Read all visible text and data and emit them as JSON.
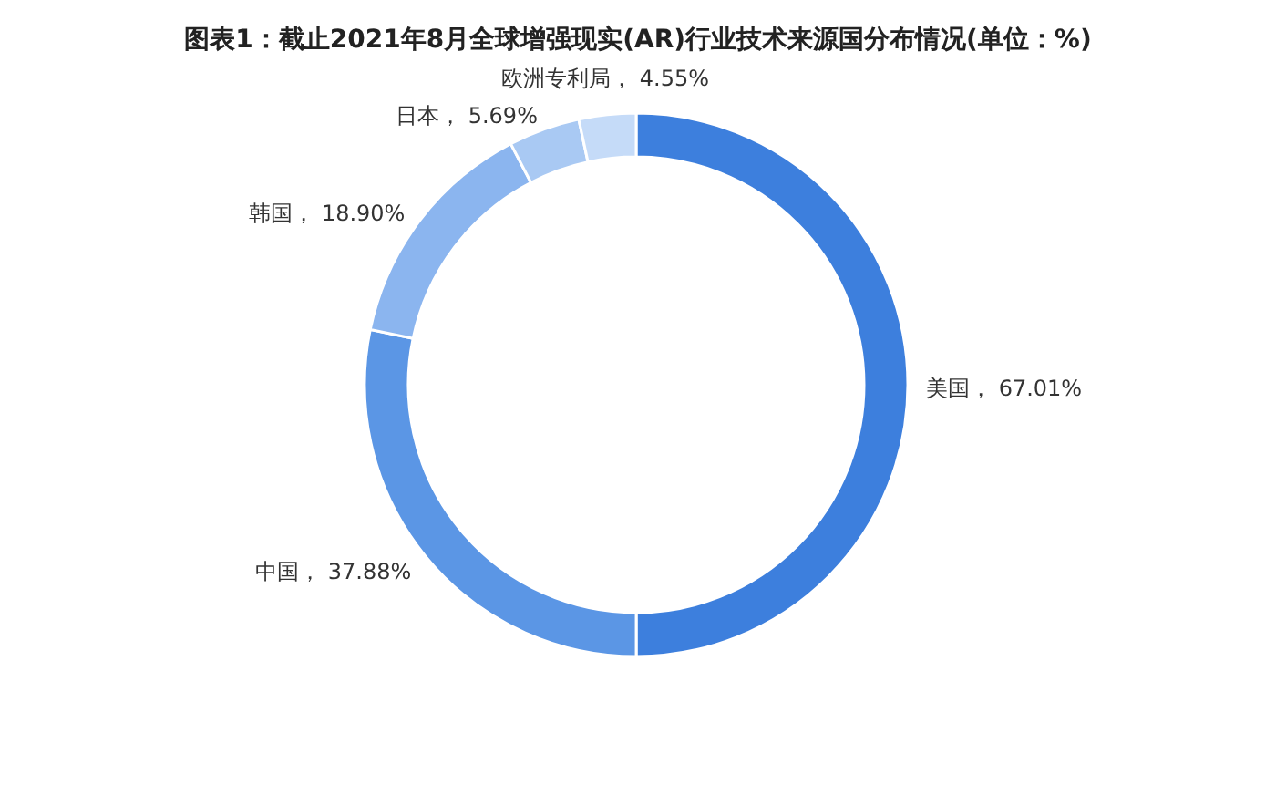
{
  "chart_data": {
    "type": "donut",
    "title": "图表1：截止2021年8月全球增强现实(AR)行业技术来源国分布情况(单位：%)",
    "categories": [
      "美国",
      "中国",
      "韩国",
      "日本",
      "欧洲专利局"
    ],
    "values": [
      67.01,
      37.88,
      18.9,
      5.69,
      4.55
    ],
    "value_labels": [
      "67.01%",
      "37.88%",
      "18.90%",
      "5.69%",
      "4.55%"
    ],
    "colors": [
      "#3d7fdd",
      "#5b96e5",
      "#8bb5ef",
      "#a9c9f3",
      "#c5dbf8"
    ],
    "legend": false
  }
}
